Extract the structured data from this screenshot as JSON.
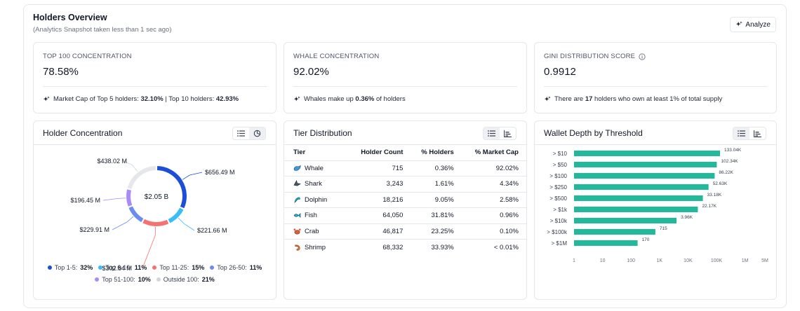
{
  "header": {
    "title": "Holders Overview",
    "subtitle": "(Analytics Snapshot taken less than 1 sec ago)",
    "analyze_label": "Analyze"
  },
  "stats": [
    {
      "label": "TOP 100 CONCENTRATION",
      "value": "78.58%",
      "foot_parts": [
        "Market Cap of Top 5 holders: ",
        "32.10%",
        " | Top 10 holders: ",
        "42.93%"
      ]
    },
    {
      "label": "WHALE CONCENTRATION",
      "value": "92.02%",
      "foot_parts": [
        "Whales make up ",
        "0.36%",
        " of holders"
      ]
    },
    {
      "label": "GINI DISTRIBUTION SCORE",
      "value": "0.9912",
      "foot_parts": [
        "There are ",
        "17",
        " holders who own at least 1% of total supply"
      ]
    }
  ],
  "holder_concentration": {
    "title": "Holder Concentration",
    "center_label": "$2.05 B",
    "chart_data": {
      "type": "pie",
      "categories": [
        "Top 1-5",
        "Top 6-10",
        "Top 11-25",
        "Top 26-50",
        "Top 51-100",
        "Outside 100"
      ],
      "values": [
        32,
        11,
        15,
        11,
        10,
        21
      ],
      "value_labels": [
        "$656.49 M",
        "$221.66 M",
        "$302.84 M",
        "$229.91 M",
        "$196.45 M",
        "$438.02 M"
      ],
      "percent_labels": [
        "32%",
        "11%",
        "15%",
        "11%",
        "10%",
        "21%"
      ],
      "colors": [
        "#1d4ed8",
        "#38bdf8",
        "#f87171",
        "#6b8cf0",
        "#a78bfa",
        "#e5e7eb"
      ],
      "legend": "bottom"
    }
  },
  "tier_distribution": {
    "title": "Tier Distribution",
    "columns": [
      "Tier",
      "Holder Count",
      "% Holders",
      "% Market Cap"
    ],
    "rows": [
      {
        "icon": "whale-icon",
        "tier": "Whale",
        "count": "715",
        "holders": "0.36%",
        "mcap": "92.02%"
      },
      {
        "icon": "shark-icon",
        "tier": "Shark",
        "count": "3,243",
        "holders": "1.61%",
        "mcap": "4.34%"
      },
      {
        "icon": "dolphin-icon",
        "tier": "Dolphin",
        "count": "18,216",
        "holders": "9.05%",
        "mcap": "2.58%"
      },
      {
        "icon": "fish-icon",
        "tier": "Fish",
        "count": "64,050",
        "holders": "31.81%",
        "mcap": "0.96%"
      },
      {
        "icon": "crab-icon",
        "tier": "Crab",
        "count": "46,817",
        "holders": "23.25%",
        "mcap": "0.10%"
      },
      {
        "icon": "shrimp-icon",
        "tier": "Shrimp",
        "count": "68,332",
        "holders": "33.93%",
        "mcap": "< 0.01%"
      }
    ]
  },
  "wallet_depth": {
    "title": "Wallet Depth by Threshold",
    "chart_data": {
      "type": "bar",
      "orientation": "horizontal",
      "categories": [
        "> $10",
        "> $50",
        "> $100",
        "> $250",
        "> $500",
        "> $1k",
        "> $10k",
        "> $100k",
        "> $1M"
      ],
      "values": [
        133040,
        102340,
        86220,
        52630,
        33180,
        22170,
        3960,
        715,
        170
      ],
      "value_labels": [
        "133.04K",
        "102.34K",
        "86.22K",
        "52.63K",
        "33.18K",
        "22.17K",
        "3.96K",
        "715",
        "170"
      ],
      "x_scale": "log",
      "x_ticks": [
        1,
        10,
        100,
        1000,
        10000,
        100000,
        1000000,
        5000000
      ],
      "x_tick_labels": [
        "1",
        "10",
        "100",
        "1K",
        "10K",
        "100K",
        "1M",
        "5M"
      ],
      "xlim": [
        1,
        5000000
      ],
      "color": "#22b89a"
    }
  }
}
